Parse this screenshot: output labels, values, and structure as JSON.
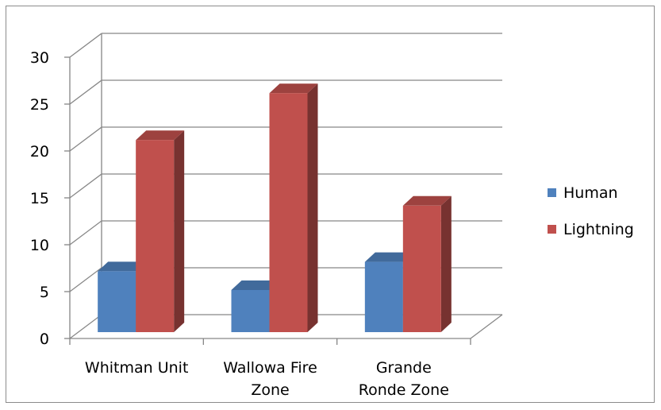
{
  "chart_data": {
    "type": "bar",
    "title": "",
    "xlabel": "",
    "ylabel": "",
    "ylim": [
      0,
      30
    ],
    "yticks": [
      0,
      5,
      10,
      15,
      20,
      25,
      30
    ],
    "categories": [
      [
        "Whitman Unit"
      ],
      [
        "Wallowa Fire",
        "Zone"
      ],
      [
        "Grande",
        "Ronde Zone"
      ]
    ],
    "series": [
      {
        "name": "Human",
        "values": [
          7,
          5,
          8
        ],
        "color": "#4f81bd"
      },
      {
        "name": "Lightning",
        "values": [
          21,
          26,
          14
        ],
        "color": "#c0504d"
      }
    ],
    "grid": true,
    "legend_position": "right",
    "three_d": true
  }
}
